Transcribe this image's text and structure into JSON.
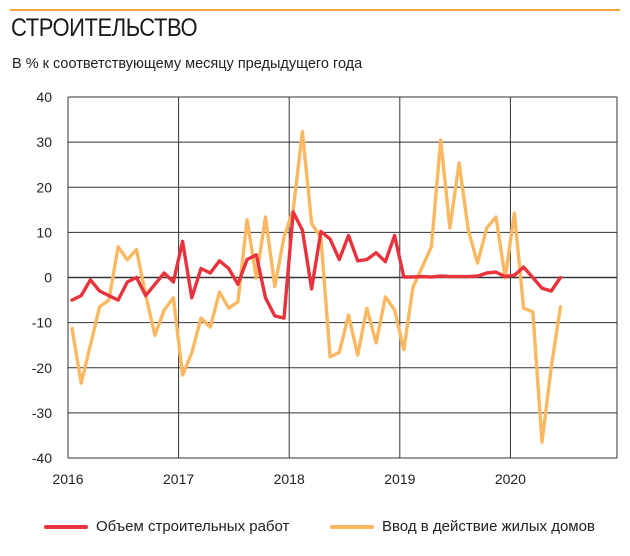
{
  "header": {
    "title": "СТРОИТЕЛЬСТВО",
    "subtitle": "В % к соответствующему месяцу предыдущего года"
  },
  "colors": {
    "accent_line": "#f5a53a"
  },
  "chart_data": {
    "type": "line",
    "title": "СТРОИТЕЛЬСТВО",
    "subtitle": "В % к соответствующему месяцу предыдущего года",
    "xlabel": "",
    "ylabel": "",
    "x_start": "2016-01",
    "x_end": "2020-06",
    "x_frequency": "monthly",
    "x_tick_labels": [
      "2016",
      "2017",
      "2018",
      "2019",
      "2020"
    ],
    "y_tick_labels": [
      "40",
      "30",
      "20",
      "10",
      "0",
      "-10",
      "-20",
      "-30",
      "-40"
    ],
    "ylim": [
      -40,
      40
    ],
    "xlim": [
      "2016-01",
      "2020-12"
    ],
    "grid": true,
    "legend_position": "bottom",
    "series": [
      {
        "name": "Объем строительных работ",
        "color": "#e8323c",
        "values": [
          -5,
          -4,
          -0.5,
          -3,
          -4,
          -5,
          -1,
          0,
          -4,
          -1.5,
          1,
          -1,
          8,
          -4.5,
          2,
          1,
          3.7,
          2,
          -1.5,
          4,
          5,
          -4.5,
          -8.5,
          -9,
          14.5,
          10.5,
          -2.5,
          10.2,
          8.5,
          4,
          9.3,
          3.7,
          4,
          5.5,
          3.5,
          9.3,
          0.1,
          0.1,
          0.2,
          0.1,
          0.3,
          0.2,
          0.2,
          0.2,
          0.3,
          1,
          1.2,
          0.2,
          0.5,
          2.3,
          0,
          -2.4,
          -3,
          0
        ]
      },
      {
        "name": "Ввод в действие жилых домов",
        "color": "#fbb862",
        "values": [
          -11.3,
          -23.4,
          -15,
          -6.5,
          -5,
          6.8,
          3.9,
          6.2,
          -3.9,
          -12.8,
          -7.2,
          -4.5,
          -21.6,
          -16.7,
          -9,
          -11,
          -3.2,
          -6.8,
          -5.4,
          12.8,
          -0.1,
          13.4,
          -2,
          9,
          15,
          32.3,
          12,
          8.8,
          -17.6,
          -16.6,
          -8.3,
          -17.2,
          -6.8,
          -14.5,
          -4.3,
          -7.2,
          -16,
          -2.1,
          2.3,
          6.8,
          30.5,
          11,
          25.4,
          10.5,
          3.2,
          11,
          13.4,
          -0.1,
          14.3,
          -6.8,
          -7.6,
          -36.5,
          -19.8,
          -6.5
        ]
      }
    ]
  }
}
